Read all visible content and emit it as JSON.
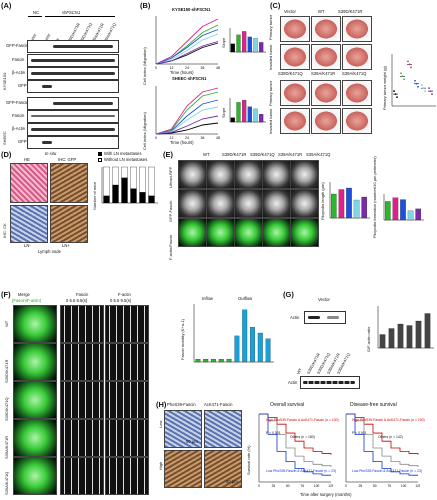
{
  "panels": {
    "A": "(A)",
    "B": "(B)",
    "C": "(C)",
    "D": "(D)",
    "E": "(E)",
    "F": "(F)",
    "G": "(G)",
    "H": "(H)"
  },
  "A": {
    "nc": "NC",
    "sh": "shFSCN1",
    "lanes": [
      "Vector",
      "WT",
      "S39D/K471R",
      "S39D/K471Q",
      "S39A/K471R",
      "S39A/K471Q"
    ],
    "rows": [
      "GFP-Fascin",
      "Fascin",
      "β-Actin",
      "GFP"
    ],
    "cell1": "KYSE150",
    "cell2": "SHEEC"
  },
  "B": {
    "title1": "KYSE150-shFSCN1",
    "title2": "SHEEC-shFSCN1",
    "ylabel": "Cell index (Migration)",
    "xlabel": "Time (hours)",
    "slope": "Slope",
    "xticks": [
      "0",
      "12",
      "24",
      "36",
      "48"
    ]
  },
  "C": {
    "labels": [
      "Vector",
      "WT",
      "S39D/K471R",
      "S39D/K471Q",
      "S39A/K471R",
      "S39A/K471Q"
    ],
    "primary": "Primary tumor",
    "invaded": "Invaded tumor",
    "ylabel": "Primary tumor weight (g)",
    "xcats": [
      "Vector",
      "WT",
      "S39D/K471R",
      "S39D/K471Q",
      "S39A/K471R",
      "S39A/K471Q"
    ]
  },
  "D": {
    "insitu": "In situ",
    "he": "HE",
    "ihcgfp": "IHC: GFP",
    "ihcck": "IHC: CK",
    "ln_neg": "LN-",
    "ln_pos": "LN+",
    "lymph": "Lymph node",
    "legend_with": "With LN metastases",
    "legend_without": "Without LN metastases",
    "ylabel": "Number of mice",
    "xcats": [
      "Vector",
      "WT",
      "S39D/K471R",
      "S39D/K471Q",
      "S39A/K471R",
      "S39A/K471Q"
    ]
  },
  "E": {
    "cols": [
      "WT",
      "S39D/K471R",
      "S39D/K471Q",
      "S39A/K471R",
      "S39A/K471Q"
    ],
    "rows": [
      "Lifeact-RFP",
      "GFP-Fascin",
      "F-actin/Fascin"
    ],
    "yl1": "Filopodia length (μm)",
    "yl2": "Filopodia formation (number/10 μm perimeter)"
  },
  "F": {
    "merge": "Merge",
    "merge_sub": "(Fascin/F-actin)",
    "fascin": "Fascin",
    "factin": "F-actin",
    "times": [
      "0",
      "5.5",
      "9.5(s)"
    ],
    "rows": [
      "WT",
      "S39D/K471R",
      "S39D/K471Q",
      "S39A/K471R",
      "S39A/K471Q"
    ],
    "inflow": "Inflow",
    "outflow": "Outflow",
    "ylabel": "Fascin mobility (K+a-1)"
  },
  "G": {
    "vector": "Vector",
    "actin": "Actin",
    "sp": [
      "S",
      "P",
      "S",
      "P"
    ],
    "lanes": [
      "WT",
      "S39D/K471R",
      "S39D/K471Q",
      "S39A/K471R",
      "S39A/K471Q"
    ],
    "ylabel": "G/F-actin ratio",
    "xcats": [
      "Vector",
      "WT",
      "S39D/K471R",
      "S39D/K471Q",
      "S39A/K471R",
      "S39A/K471Q"
    ]
  },
  "H": {
    "phos": "PhoS39-Fascin",
    "ack": "AcK471-Fascin",
    "low": "Low",
    "high": "High",
    "scale": "50 μm",
    "os": "Overall survival",
    "dfs": "Disease-free survival",
    "ylabel": "Survival rate (%)",
    "xlabel": "Time after surgery (months)",
    "os_high": "High PhoS39-Fascin & AcK471-Fascin (n = 100)",
    "os_low": "Low PhoS39-Fascin & AcK471-Fascin (n = 23)",
    "os_p": "P < 0.001",
    "os_others": "Others (n = 180)",
    "dfs_high": "High PhoS39-Fascin & AcK471-Fascin (n = 100)",
    "dfs_low": "Low PhoS39-Fascin & AcK471-Fascin (n = 23)",
    "dfs_p": "P < 0.001",
    "dfs_others": "Others (n = 142)",
    "xticks": [
      "0",
      "25",
      "50",
      "75",
      "100",
      "125"
    ]
  },
  "colors": {
    "vector": "#000000",
    "wt": "#2db52d",
    "s39dr": "#e0208c",
    "s39dq": "#1e50d8",
    "s39ar": "#7fd4e8",
    "s39aq": "#7a2aa8",
    "bar": "#444444"
  },
  "chart_data": [
    {
      "type": "line",
      "id": "B-KYSE150",
      "x": [
        0,
        12,
        24,
        36,
        48
      ],
      "series": [
        {
          "name": "Vector",
          "values": [
            0,
            0.1,
            0.3,
            0.55,
            0.7
          ]
        },
        {
          "name": "WT",
          "values": [
            0,
            0.2,
            0.6,
            1.05,
            1.3
          ]
        },
        {
          "name": "S39D/K471R",
          "values": [
            0,
            0.25,
            0.75,
            1.25,
            1.5
          ]
        },
        {
          "name": "S39D/K471Q",
          "values": [
            0,
            0.2,
            0.55,
            0.95,
            1.15
          ]
        },
        {
          "name": "S39A/K471R",
          "values": [
            0,
            0.15,
            0.45,
            0.8,
            1.0
          ]
        },
        {
          "name": "S39A/K471Q",
          "values": [
            0,
            0.1,
            0.35,
            0.6,
            0.75
          ]
        }
      ]
    },
    {
      "type": "bar",
      "id": "B-KYSE150-slope",
      "categories": [
        "Vector",
        "WT",
        "S39D/K471R",
        "S39D/K471Q",
        "S39A/K471R",
        "S39A/K471Q"
      ],
      "values": [
        0.012,
        0.025,
        0.03,
        0.022,
        0.02,
        0.014
      ]
    },
    {
      "type": "line",
      "id": "B-SHEEC",
      "x": [
        0,
        12,
        24,
        36,
        48
      ],
      "series": [
        {
          "name": "Vector",
          "values": [
            0,
            0.05,
            0.2,
            0.45,
            0.55
          ]
        },
        {
          "name": "WT",
          "values": [
            0,
            0.2,
            1.2,
            1.9,
            2.1
          ]
        },
        {
          "name": "S39D/K471R",
          "values": [
            0,
            0.25,
            1.4,
            2.1,
            2.3
          ]
        },
        {
          "name": "S39D/K471Q",
          "values": [
            0,
            0.15,
            0.9,
            1.5,
            1.7
          ]
        },
        {
          "name": "S39A/K471R",
          "values": [
            0,
            0.12,
            0.7,
            1.2,
            1.35
          ]
        },
        {
          "name": "S39A/K471Q",
          "values": [
            0,
            0.08,
            0.4,
            0.75,
            0.9
          ]
        }
      ]
    },
    {
      "type": "bar",
      "id": "B-SHEEC-slope",
      "categories": [
        "Vector",
        "WT",
        "S39D/K471R",
        "S39D/K471Q",
        "S39A/K471R",
        "S39A/K471Q"
      ],
      "values": [
        0.01,
        0.045,
        0.05,
        0.035,
        0.03,
        0.018
      ]
    },
    {
      "type": "scatter",
      "id": "C-weight",
      "categories": [
        "Vector",
        "WT",
        "S39D/K471R",
        "S39D/K471Q",
        "S39A/K471R",
        "S39A/K471Q"
      ],
      "values": [
        0.08,
        0.2,
        0.28,
        0.15,
        0.12,
        0.1
      ]
    },
    {
      "type": "bar",
      "id": "D-mice",
      "categories": [
        "Vector",
        "WT",
        "S39D/K471R",
        "S39D/K471Q",
        "S39A/K471R",
        "S39A/K471Q"
      ],
      "series": [
        {
          "name": "With LN metastases",
          "values": [
            2,
            5,
            7,
            4,
            3,
            2
          ]
        },
        {
          "name": "Without LN metastases",
          "values": [
            8,
            5,
            3,
            6,
            7,
            8
          ]
        }
      ]
    },
    {
      "type": "bar",
      "id": "E-length",
      "categories": [
        "WT",
        "S39D/K471R",
        "S39D/K471Q",
        "S39A/K471R",
        "S39A/K471Q"
      ],
      "values": [
        1.6,
        1.9,
        2.0,
        1.2,
        1.4
      ]
    },
    {
      "type": "bar",
      "id": "E-formation",
      "categories": [
        "WT",
        "S39D/K471R",
        "S39D/K471Q",
        "S39A/K471R",
        "S39A/K471Q"
      ],
      "values": [
        1.0,
        1.2,
        1.1,
        0.5,
        0.6
      ]
    },
    {
      "type": "bar",
      "id": "F-mobility",
      "categories": [
        "WT",
        "S39D/K471R",
        "S39D/K471Q",
        "S39A/K471R",
        "S39A/K471Q",
        "WT",
        "S39D/K471R",
        "S39D/K471Q",
        "S39A/K471R",
        "S39A/K471Q"
      ],
      "values": [
        0.05,
        0.05,
        0.05,
        0.05,
        0.05,
        0.45,
        0.9,
        0.6,
        0.5,
        0.4
      ]
    },
    {
      "type": "bar",
      "id": "G-ratio",
      "categories": [
        "Vector",
        "WT",
        "S39D/K471R",
        "S39D/K471Q",
        "S39A/K471R",
        "S39A/K471Q"
      ],
      "values": [
        0.9,
        1.3,
        1.6,
        1.5,
        1.8,
        2.3
      ]
    }
  ]
}
